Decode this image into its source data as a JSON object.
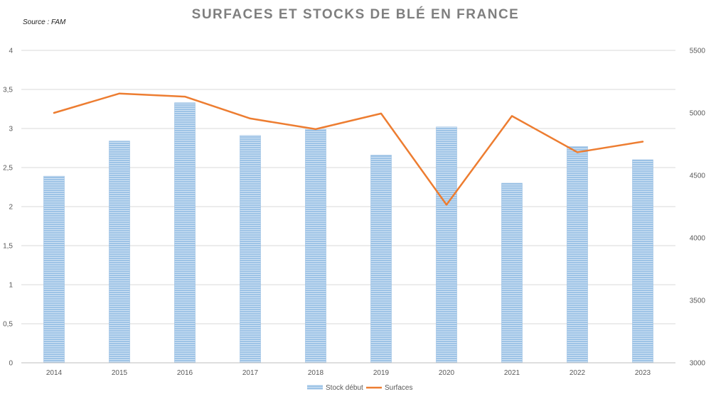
{
  "chart_data": {
    "type": "bar+line",
    "title": "SURFACES ET STOCKS DE BLÉ EN FRANCE",
    "source": "Source : FAM",
    "categories": [
      "2014",
      "2015",
      "2016",
      "2017",
      "2018",
      "2019",
      "2020",
      "2021",
      "2022",
      "2023"
    ],
    "series": [
      {
        "name": "Stock début",
        "type": "bar",
        "axis": "left",
        "color": "#9DC3E6",
        "values": [
          2.39,
          2.84,
          3.33,
          2.91,
          2.99,
          2.66,
          3.02,
          2.3,
          2.77,
          2.6
        ]
      },
      {
        "name": "Surfaces",
        "type": "line",
        "axis": "right",
        "color": "#ED7D31",
        "values": [
          5000,
          5155,
          5130,
          4955,
          4870,
          4995,
          4265,
          4975,
          4685,
          4770
        ]
      }
    ],
    "y_left": {
      "min": 0,
      "max": 4,
      "ticks": [
        0,
        0.5,
        1,
        1.5,
        2,
        2.5,
        3,
        3.5,
        4
      ],
      "tick_labels": [
        "0",
        "0,5",
        "1",
        "1,5",
        "2",
        "2,5",
        "3",
        "3,5",
        "4"
      ]
    },
    "y_right": {
      "min": 3000,
      "max": 5500,
      "ticks": [
        3000,
        3500,
        4000,
        4500,
        5000,
        5500
      ],
      "tick_labels": [
        "3000",
        "3500",
        "4000",
        "4500",
        "5000",
        "5500"
      ]
    },
    "grid": true,
    "legend_position": "bottom",
    "gridline_color": "#d9d9d9",
    "axis_text_color": "#595959"
  }
}
